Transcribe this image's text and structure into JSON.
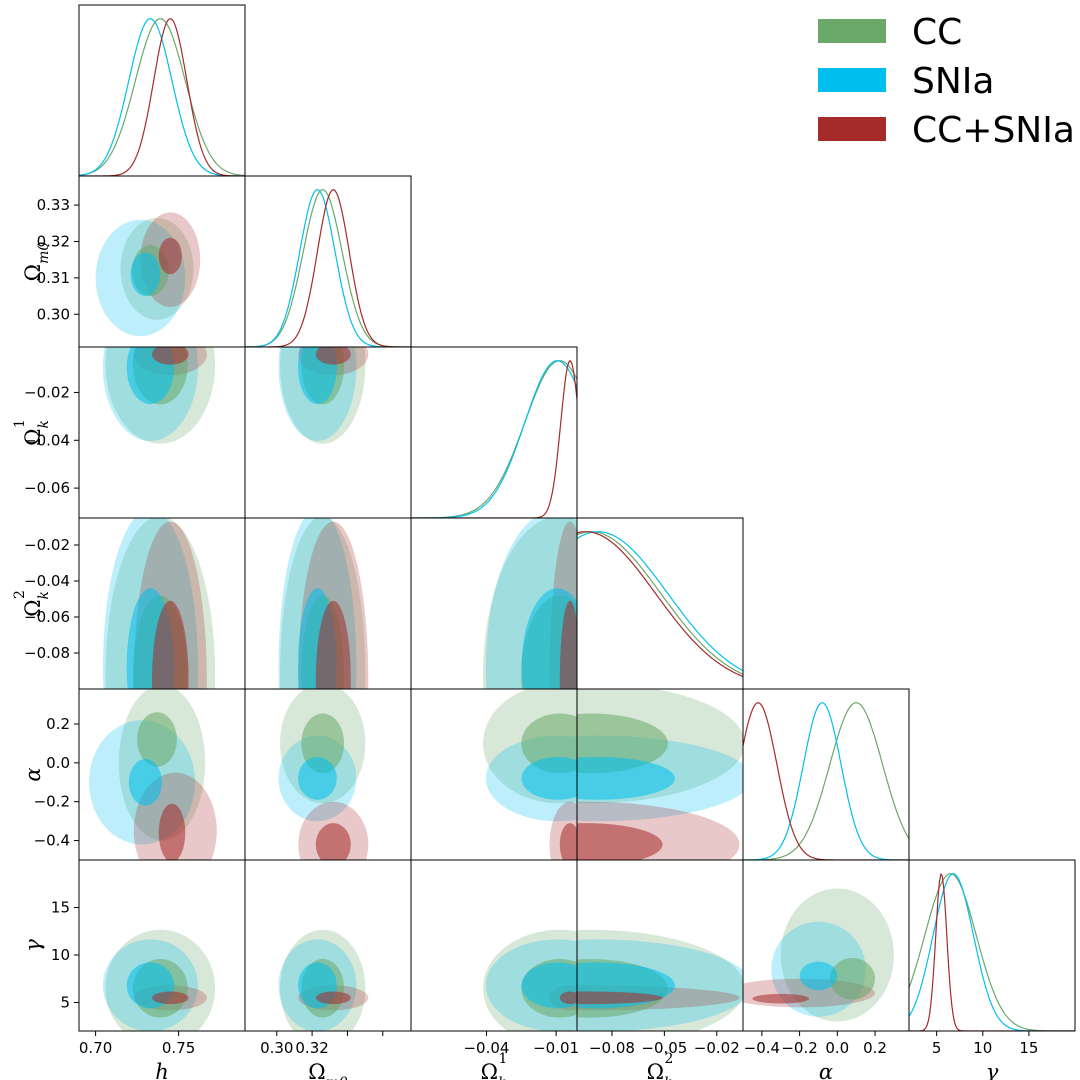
{
  "chart_data": {
    "type": "corner",
    "title": "",
    "parameters": [
      {
        "key": "h",
        "label": "h",
        "range": [
          0.69,
          0.79
        ],
        "ticks": [
          0.7,
          0.75
        ],
        "tick_labels": [
          "0.70",
          "0.75"
        ]
      },
      {
        "key": "om",
        "label": "Ωm0",
        "label_main": "Ω",
        "label_sub": "m0",
        "range": [
          0.291,
          0.338
        ],
        "ticks": [
          0.3,
          0.31,
          0.32,
          0.33
        ],
        "tick_labels_x": [
          "0.30",
          "0.32"
        ],
        "tick_labels_y": [
          "0.30",
          "0.31",
          "0.32",
          "0.33"
        ]
      },
      {
        "key": "k1",
        "label": "Ωk1",
        "label_main": "Ω",
        "label_sub": "k",
        "label_sup": "1",
        "range": [
          -0.0725,
          -0.001
        ],
        "ticks": [
          -0.04,
          -0.01
        ],
        "tick_labels_x": [
          "−0.04",
          "−0.01"
        ],
        "ticks_y": [
          -0.02,
          -0.04,
          -0.06
        ],
        "tick_labels_y": [
          "−0.02",
          "−0.04",
          "−0.06"
        ]
      },
      {
        "key": "k2",
        "label": "Ωk2",
        "label_main": "Ω",
        "label_sub": "k",
        "label_sup": "2",
        "range": [
          -0.1,
          -0.005
        ],
        "ticks": [
          -0.08,
          -0.05,
          -0.02
        ],
        "tick_labels_x": [
          "−0.08",
          "−0.05",
          "−0.02"
        ],
        "ticks_y": [
          -0.02,
          -0.04,
          -0.06,
          -0.08
        ],
        "tick_labels_y": [
          "−0.02",
          "−0.04",
          "−0.06",
          "−0.08"
        ]
      },
      {
        "key": "al",
        "label": "α",
        "range": [
          -0.5,
          0.38
        ],
        "ticks": [
          -0.4,
          -0.2,
          0.0,
          0.2
        ],
        "tick_labels_x": [
          "−0.4",
          "−0.2",
          "0.0",
          "0.2"
        ],
        "ticks_y": [
          0.2,
          0.0,
          -0.2,
          -0.4
        ],
        "tick_labels_y": [
          "0.2",
          "0.0",
          "−0.2",
          "−0.4"
        ]
      },
      {
        "key": "ga",
        "label": "γ",
        "range": [
          2.0,
          20.0
        ],
        "ticks": [
          5,
          10,
          15
        ],
        "tick_labels": [
          "5",
          "10",
          "15"
        ]
      }
    ],
    "series": [
      {
        "name": "CC",
        "color": "#6aa86a",
        "mean": {
          "h": 0.739,
          "om": 0.313,
          "k1": -0.0085,
          "k2": -0.092,
          "al": 0.1,
          "ga": 6.5
        },
        "sigma": {
          "h": 0.015,
          "om": 0.0055,
          "k1": 0.015,
          "k2": 0.04,
          "al": 0.14,
          "ga": 2.8
        },
        "contours_1sigma": {
          "h_om": {
            "cx": 0.733,
            "cy": 0.312,
            "rx": 0.011,
            "ry": 0.007
          },
          "h_al": {
            "cx": 0.737,
            "cy": 0.12,
            "rx": 0.012,
            "ry": 0.14
          },
          "al_ga": {
            "cx": 0.08,
            "cy": 7.5,
            "rx": 0.12,
            "ry": 2.2
          }
        },
        "contours_2sigma": {
          "h_om": {
            "cx": 0.737,
            "cy": 0.3125,
            "rx": 0.022,
            "ry": 0.014
          },
          "h_al": {
            "cx": 0.74,
            "cy": 0.0,
            "rx": 0.026,
            "ry": 0.4
          },
          "al_ga": {
            "cx": 0.0,
            "cy": 10.0,
            "rx": 0.3,
            "ry": 7.0
          }
        }
      },
      {
        "name": "SNIa",
        "color": "#00bfef",
        "mean": {
          "h": 0.733,
          "om": 0.3115,
          "k1": -0.0095,
          "k2": -0.088,
          "al": -0.08,
          "ga": 6.8
        },
        "sigma": {
          "h": 0.013,
          "om": 0.005,
          "k1": 0.014,
          "k2": 0.04,
          "al": 0.1,
          "ga": 2.2
        },
        "contours_1sigma": {
          "h_om": {
            "cx": 0.73,
            "cy": 0.311,
            "rx": 0.009,
            "ry": 0.006
          },
          "h_al": {
            "cx": 0.73,
            "cy": -0.1,
            "rx": 0.01,
            "ry": 0.12
          },
          "al_ga": {
            "cx": -0.1,
            "cy": 7.8,
            "rx": 0.1,
            "ry": 1.5
          }
        },
        "contours_2sigma": {
          "h_om": {
            "cx": 0.727,
            "cy": 0.31,
            "rx": 0.027,
            "ry": 0.016
          },
          "h_al": {
            "cx": 0.728,
            "cy": -0.1,
            "rx": 0.032,
            "ry": 0.32
          },
          "al_ga": {
            "cx": -0.1,
            "cy": 8.5,
            "rx": 0.25,
            "ry": 5.0
          }
        }
      },
      {
        "name": "CC+SNIa",
        "color": "#a52a2a",
        "mean": {
          "h": 0.745,
          "om": 0.316,
          "k1": -0.004,
          "k2": -0.095,
          "al": -0.42,
          "ga": 5.5
        },
        "sigma": {
          "h": 0.01,
          "om": 0.0045,
          "k1": 0.004,
          "k2": 0.04,
          "al": 0.1,
          "ga": 0.6
        },
        "contours_1sigma": {
          "h_om": {
            "cx": 0.745,
            "cy": 0.316,
            "rx": 0.007,
            "ry": 0.005
          },
          "h_al": {
            "cx": 0.746,
            "cy": -0.36,
            "rx": 0.008,
            "ry": 0.15
          },
          "al_ga": {
            "cx": -0.3,
            "cy": 5.4,
            "rx": 0.15,
            "ry": 0.5
          }
        },
        "contours_2sigma": {
          "h_om": {
            "cx": 0.745,
            "cy": 0.315,
            "rx": 0.018,
            "ry": 0.013
          },
          "h_al": {
            "cx": 0.748,
            "cy": -0.35,
            "rx": 0.025,
            "ry": 0.3
          },
          "al_ga": {
            "cx": -0.2,
            "cy": 6.0,
            "rx": 0.4,
            "ry": 1.5
          }
        }
      }
    ],
    "legend": {
      "placement": "top-right",
      "entries": [
        "CC",
        "SNIa",
        "CC+SNIa"
      ]
    }
  }
}
